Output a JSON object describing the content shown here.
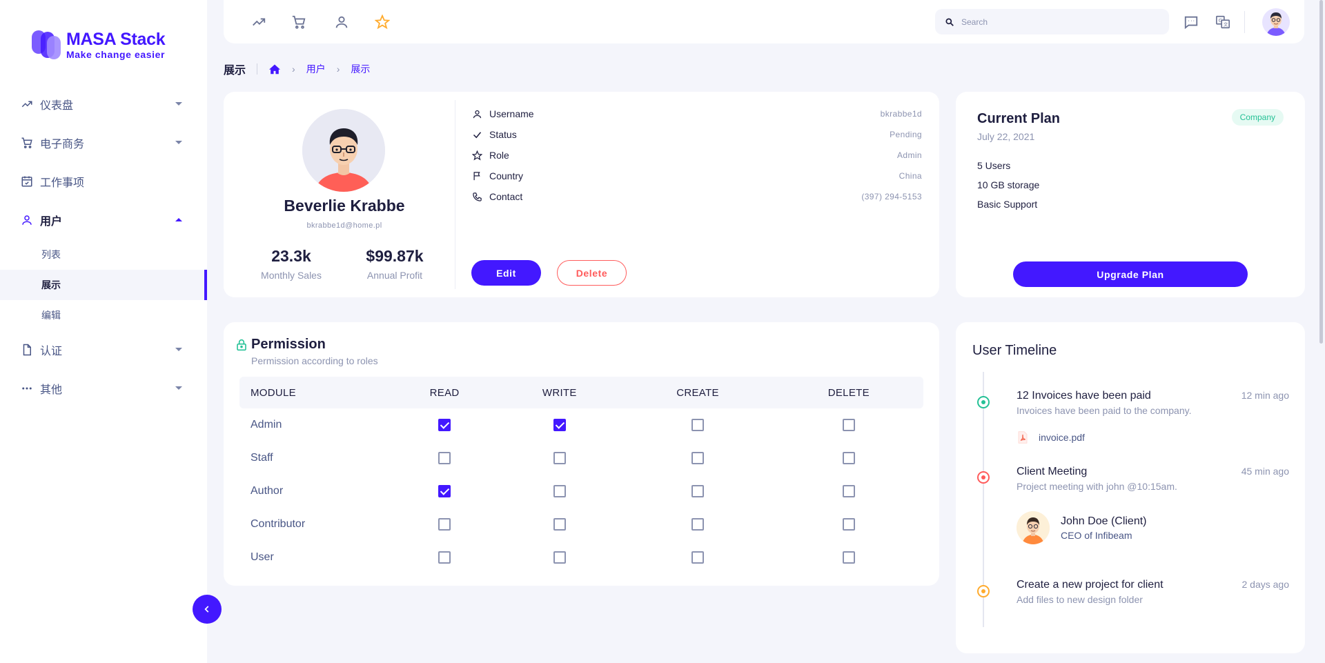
{
  "brand": {
    "title": "MASA Stack",
    "tagline": "Make change easier",
    "accent": "#4318ff"
  },
  "sidebar": {
    "items": [
      {
        "label": "仪表盘",
        "icon": "trending-up-icon"
      },
      {
        "label": "电子商务",
        "icon": "cart-icon"
      },
      {
        "label": "工作事项",
        "icon": "calendar-check-icon"
      },
      {
        "label": "用户",
        "icon": "user-icon",
        "expanded": true,
        "children": [
          {
            "label": "列表"
          },
          {
            "label": "展示",
            "active": true
          },
          {
            "label": "编辑"
          }
        ]
      },
      {
        "label": "认证",
        "icon": "file-icon"
      },
      {
        "label": "其他",
        "icon": "more-horizontal-icon"
      }
    ]
  },
  "topbar": {
    "shortcuts": [
      "trending-up-icon",
      "cart-icon",
      "user-icon",
      "star-icon"
    ],
    "search_placeholder": "Search",
    "actions": [
      "message-icon",
      "translate-icon"
    ]
  },
  "breadcrumb": {
    "title": "展示",
    "items": [
      "用户",
      "展示"
    ]
  },
  "profile": {
    "name": "Beverlie Krabbe",
    "email": "bkrabbe1d@home.pl",
    "stats": [
      {
        "value": "23.3k",
        "label": "Monthly Sales"
      },
      {
        "value": "$99.87k",
        "label": "Annual Profit"
      }
    ],
    "details": [
      {
        "label": "Username",
        "value": "bkrabbe1d",
        "icon": "user-icon"
      },
      {
        "label": "Status",
        "value": "Pending",
        "icon": "check-icon"
      },
      {
        "label": "Role",
        "value": "Admin",
        "icon": "star-icon"
      },
      {
        "label": "Country",
        "value": "China",
        "icon": "flag-icon"
      },
      {
        "label": "Contact",
        "value": "(397) 294-5153",
        "icon": "phone-icon"
      }
    ],
    "edit_label": "Edit",
    "delete_label": "Delete"
  },
  "plan": {
    "title": "Current Plan",
    "date": "July 22, 2021",
    "badge": "Company",
    "features": [
      "5 Users",
      "10 GB storage",
      "Basic Support"
    ],
    "upgrade_label": "Upgrade Plan"
  },
  "permission": {
    "title": "Permission",
    "subtitle": "Permission according to roles",
    "columns": [
      "MODULE",
      "READ",
      "WRITE",
      "CREATE",
      "DELETE"
    ],
    "rows": [
      {
        "module": "Admin",
        "read": true,
        "write": true,
        "create": false,
        "delete": false
      },
      {
        "module": "Staff",
        "read": false,
        "write": false,
        "create": false,
        "delete": false
      },
      {
        "module": "Author",
        "read": true,
        "write": false,
        "create": false,
        "delete": false
      },
      {
        "module": "Contributor",
        "read": false,
        "write": false,
        "create": false,
        "delete": false
      },
      {
        "module": "User",
        "read": false,
        "write": false,
        "create": false,
        "delete": false
      }
    ]
  },
  "timeline": {
    "title": "User Timeline",
    "events": [
      {
        "title": "12 Invoices have been paid",
        "subtitle": "Invoices have been paid to the company.",
        "time": "12 min ago",
        "color": "#25c196",
        "attachment": "invoice.pdf"
      },
      {
        "title": "Client Meeting",
        "subtitle": "Project meeting with john @10:15am.",
        "time": "45 min ago",
        "color": "#ff5b5b",
        "client": {
          "name": "John Doe (Client)",
          "role": "CEO of Infibeam"
        }
      },
      {
        "title": "Create a new project for client",
        "subtitle": "Add files to new design folder",
        "time": "2 days ago",
        "color": "#ffab2e"
      }
    ]
  }
}
